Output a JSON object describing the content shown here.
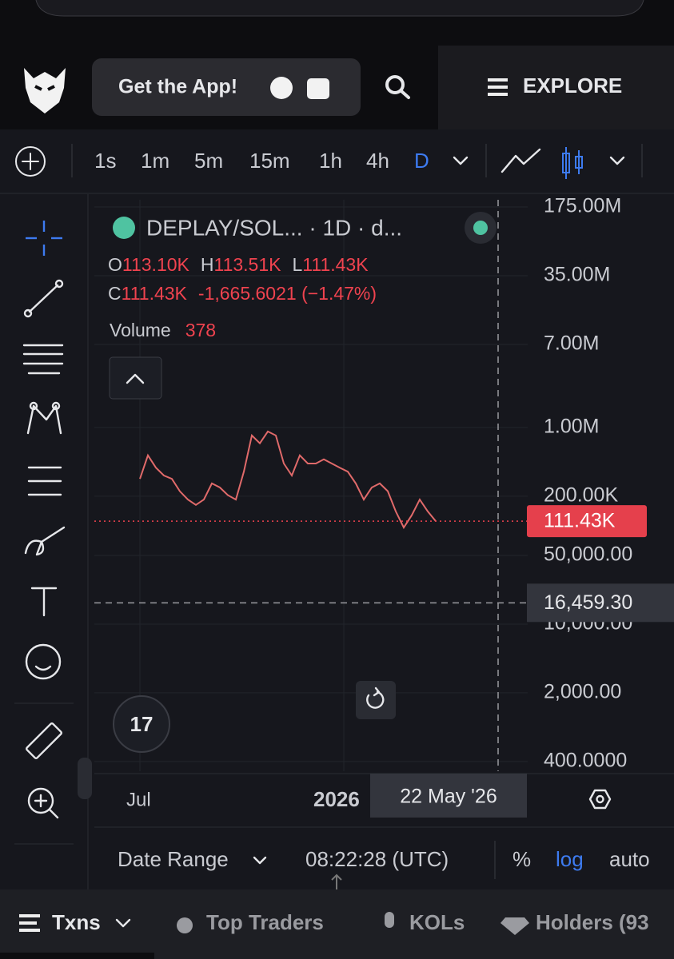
{
  "header": {
    "app_button": "Get the App!",
    "explore": "EXPLORE"
  },
  "toolbar": {
    "intervals": [
      "1s",
      "1m",
      "5m",
      "15m",
      "1h",
      "4h",
      "D"
    ]
  },
  "legend": {
    "symbol": "DEPLAY/SOL... · 1D · d...",
    "o_label": "O",
    "open": "113.10K",
    "h_label": "H",
    "high": "113.51K",
    "l_label": "L",
    "low": "111.43K",
    "c_label": "C",
    "close": "111.43K",
    "change": "-1,665.6021 (−1.47%)",
    "volume_label": "Volume",
    "volume": "378"
  },
  "chart_data": {
    "type": "line",
    "log_scale": true,
    "grid": true,
    "color": "#e06a6a",
    "values": [
      300000,
      520000,
      390000,
      325000,
      300000,
      224000,
      185000,
      163000,
      185000,
      270000,
      245000,
      205000,
      185000,
      355000,
      830000,
      690000,
      910000,
      830000,
      430000,
      325000,
      520000,
      430000,
      430000,
      475000,
      430000,
      390000,
      355000,
      270000,
      185000,
      245000,
      270000,
      225000,
      140000,
      96000,
      128000,
      185000,
      140000,
      111430
    ],
    "ylim": [
      319,
      207000000
    ],
    "yticks": [
      {
        "value": 175000000,
        "label": "175.00M"
      },
      {
        "value": 35000000,
        "label": "35.00M"
      },
      {
        "value": 7000000,
        "label": "7.00M"
      },
      {
        "value": 1000000,
        "label": "1.00M"
      },
      {
        "value": 200000,
        "label": "200.00K"
      },
      {
        "value": 50000,
        "label": "50,000.00"
      },
      {
        "value": 10000,
        "label": "10,000.00"
      },
      {
        "value": 2000,
        "label": "2,000.00"
      },
      {
        "value": 400,
        "label": "400.0000"
      }
    ],
    "last_price": {
      "value": 111430,
      "label": "111.43K"
    },
    "crosshair": {
      "value": 16459.3,
      "label": "16,459.30"
    }
  },
  "time_axis": {
    "labels": [
      "Jul",
      "2026"
    ],
    "crosshair_date": "22 May '26"
  },
  "footer": {
    "date_range": "Date Range",
    "time": "08:22:28 (UTC)",
    "percent": "%",
    "log": "log",
    "auto": "auto"
  },
  "tabs": [
    "Txns",
    "Top Traders",
    "KOLs",
    "Holders (93"
  ]
}
